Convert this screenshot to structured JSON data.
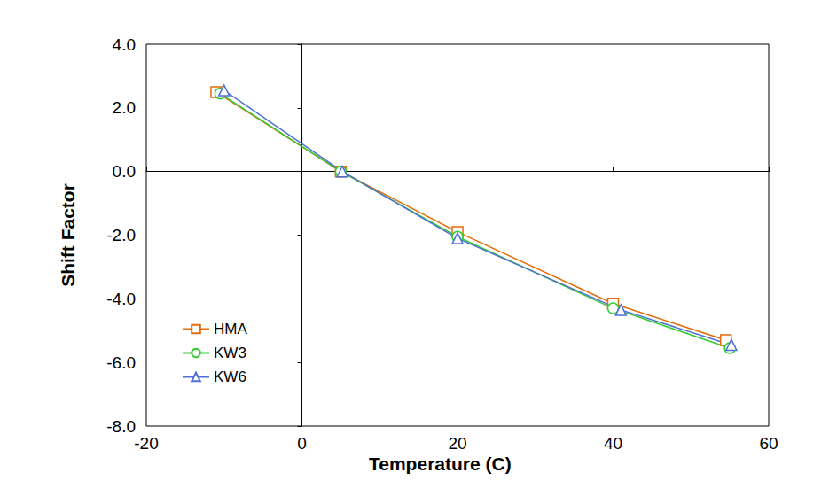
{
  "chart_data": {
    "type": "line",
    "x_label": "Temperature (C)",
    "y_label": "Shift Factor",
    "xlim": [
      -20,
      60
    ],
    "xticks": [
      -20,
      0,
      20,
      40,
      60
    ],
    "ylim": [
      -8,
      4
    ],
    "yticks": [
      {
        "value": -8,
        "label": "-8.0"
      },
      {
        "value": -6,
        "label": "-6.0"
      },
      {
        "value": -4,
        "label": "-4.0"
      },
      {
        "value": -2,
        "label": "-2.0"
      },
      {
        "value": 0,
        "label": "0.0"
      },
      {
        "value": 2,
        "label": "2.0"
      },
      {
        "value": 4,
        "label": "4.0"
      }
    ],
    "grid": false,
    "legend": "lower left",
    "series": [
      {
        "name": "HMA",
        "color": "#e46c0a",
        "marker": "square",
        "x": [
          -11,
          5,
          20,
          40,
          54.5
        ],
        "values": [
          2.5,
          0.0,
          -1.9,
          -4.15,
          -5.3
        ]
      },
      {
        "name": "KW3",
        "color": "#33cc33",
        "marker": "circle",
        "x": [
          -10.5,
          5,
          20,
          40,
          55
        ],
        "values": [
          2.45,
          0.0,
          -2.05,
          -4.3,
          -5.55
        ]
      },
      {
        "name": "KW6",
        "color": "#4f6fd6",
        "marker": "triangle",
        "x": [
          -10,
          5.2,
          20,
          41,
          55.2
        ],
        "values": [
          2.55,
          0.0,
          -2.1,
          -4.35,
          -5.45
        ]
      }
    ]
  }
}
